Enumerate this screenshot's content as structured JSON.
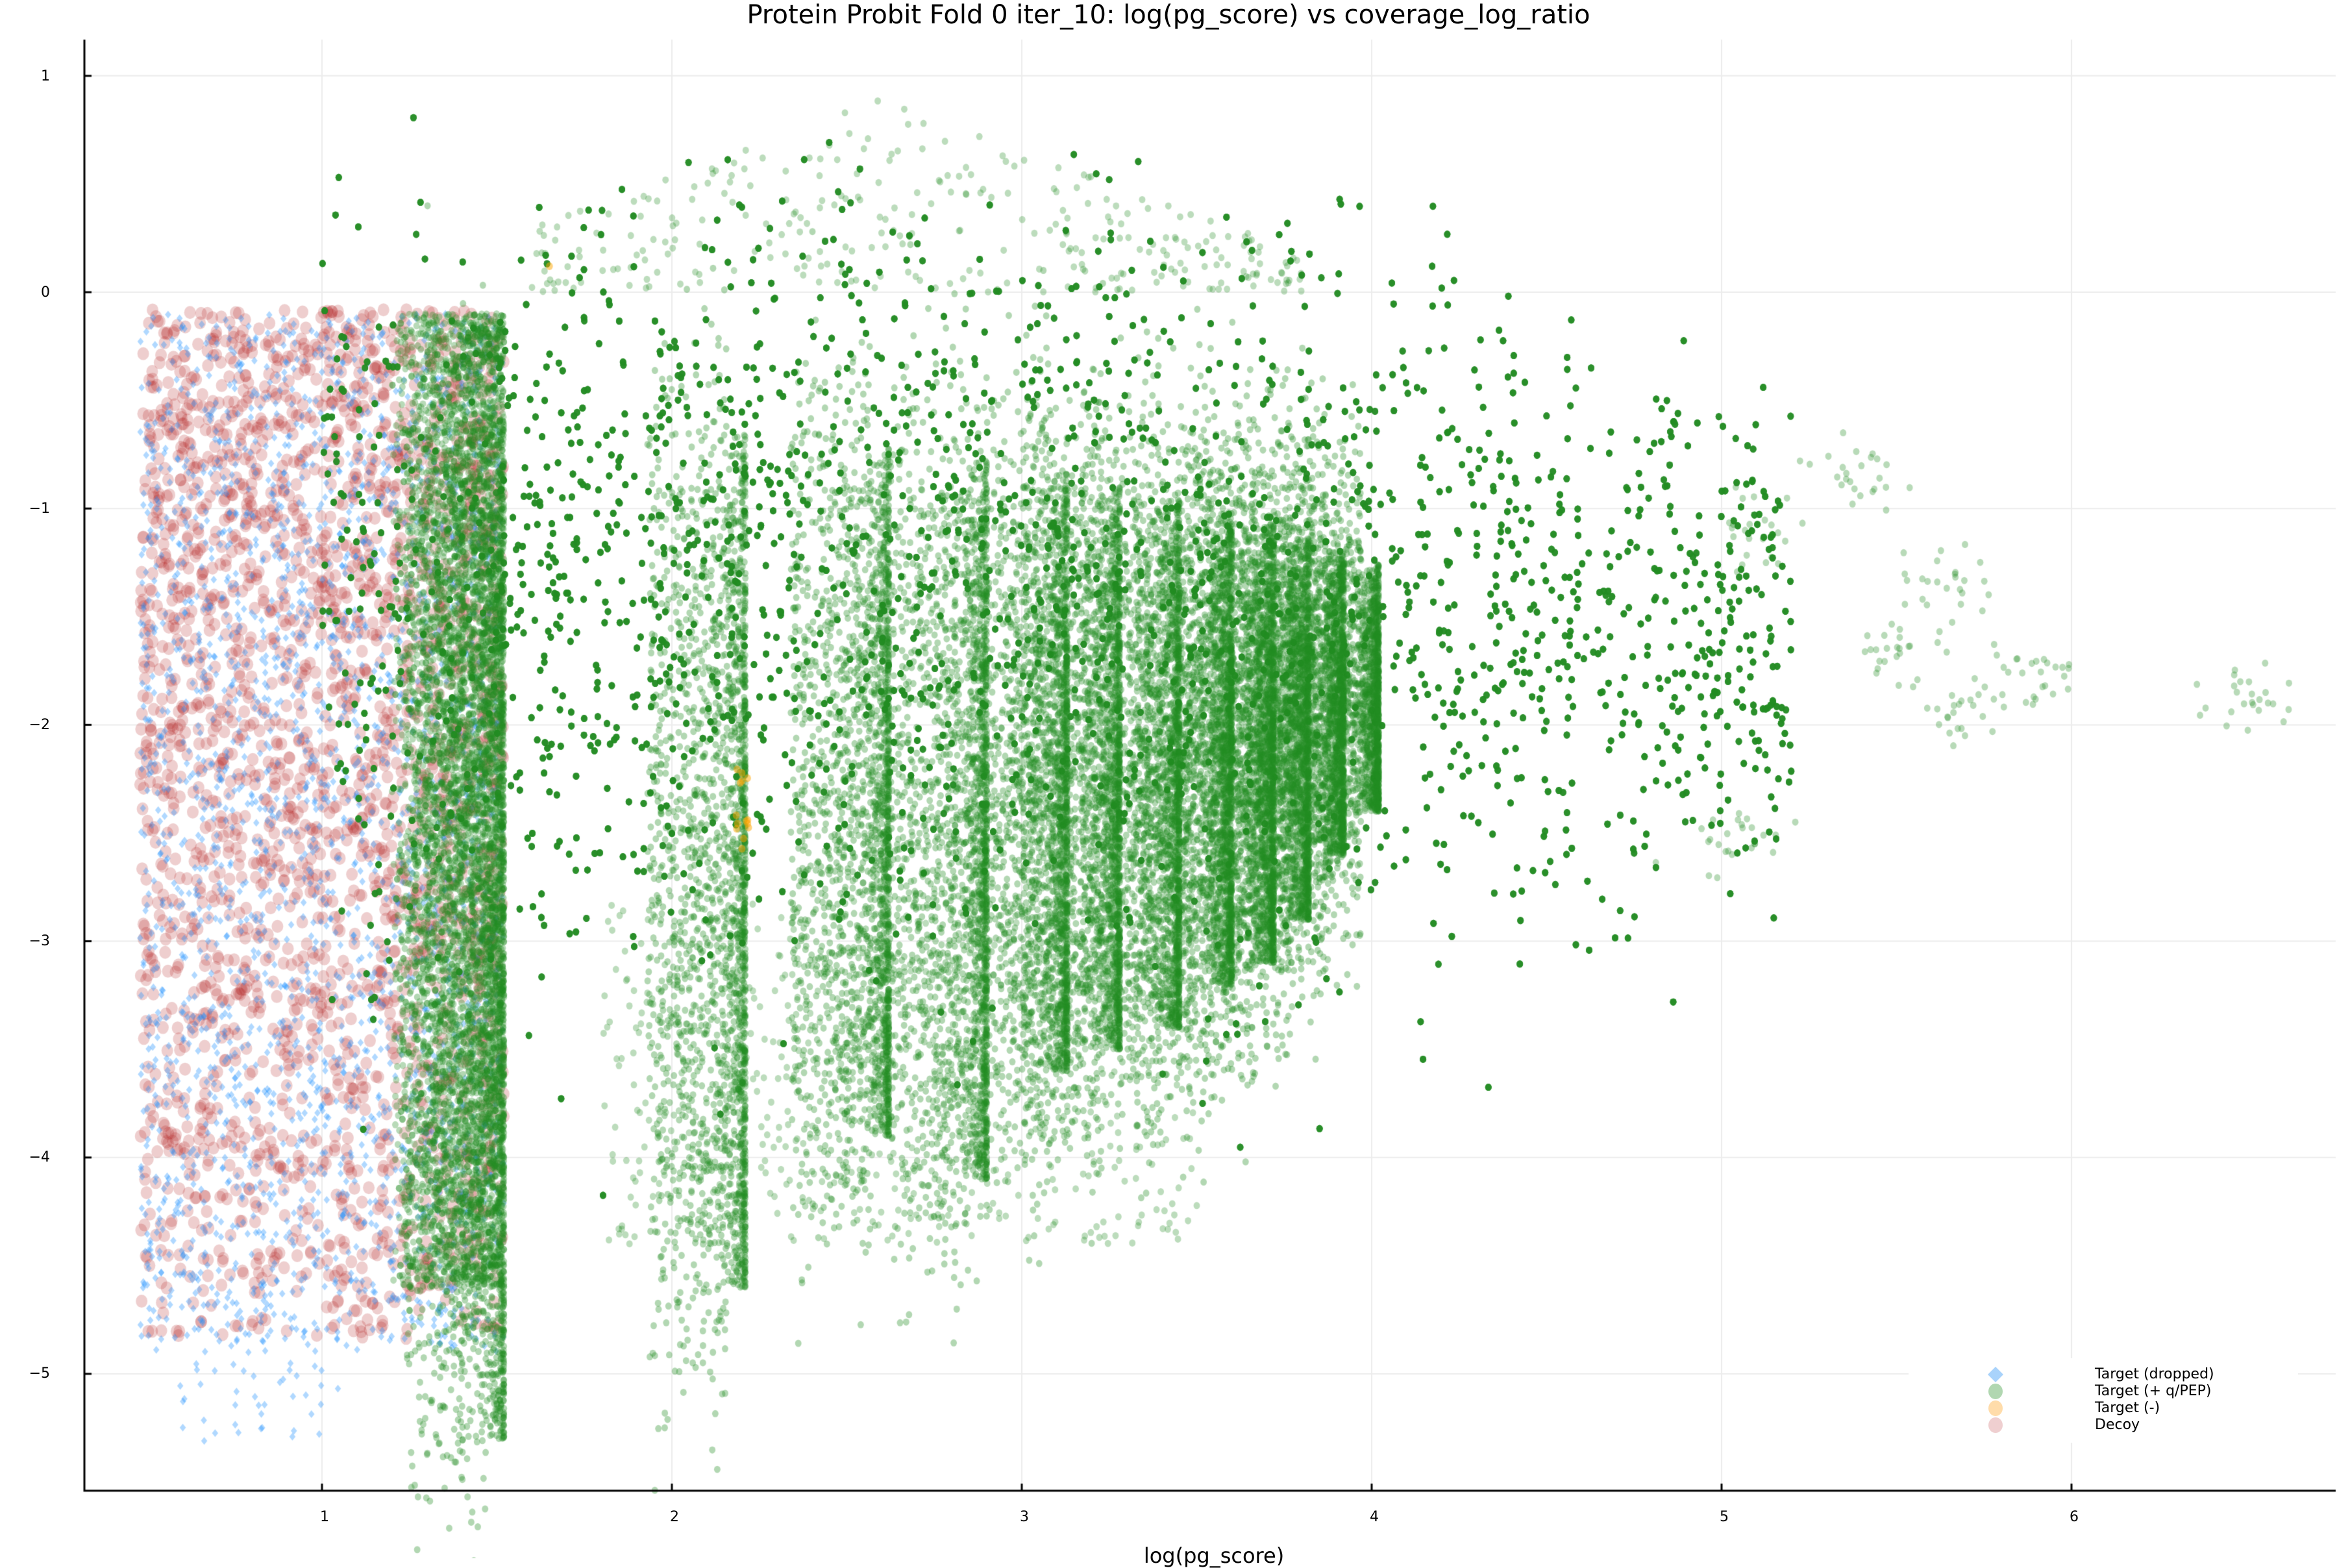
{
  "chart_data": {
    "type": "scatter",
    "title": "Protein Probit Fold 0 iter_10: log(pg_score) vs coverage_log_ratio",
    "xlabel": "log(pg_score)",
    "ylabel": "",
    "xlim": [
      0.3,
      6.75
    ],
    "ylim": [
      -5.55,
      1.17
    ],
    "grid": true,
    "legend_position": "bottom-right",
    "x_ticks": [
      1,
      2,
      3,
      4,
      5,
      6
    ],
    "y_ticks": [
      1,
      0,
      -1,
      -2,
      -3,
      -4,
      -5
    ],
    "x_tick_labels": [
      "1",
      "2",
      "3",
      "4",
      "5",
      "6"
    ],
    "y_tick_labels": [
      "1",
      "0",
      "−1",
      "−2",
      "−3",
      "−4",
      "−5"
    ],
    "series": [
      {
        "name": "Target (dropped)",
        "marker": "diamond",
        "color": "#1e90ff",
        "x_range": [
          0.48,
          1.52
        ],
        "y_range": [
          -5.35,
          -0.05
        ],
        "approx_count": 2500
      },
      {
        "name": "Target (+ q/PEP)",
        "marker": "circle",
        "color": "#228b22",
        "x_range": [
          0.9,
          6.55
        ],
        "y_range": [
          -5.3,
          0.98
        ],
        "approx_count": 60000,
        "dense_vertical_columns_x": [
          1.52,
          2.21,
          2.62,
          2.9,
          3.13,
          3.28,
          3.45,
          3.6,
          3.72,
          3.82,
          3.92,
          4.02
        ],
        "column_bottom_y": [
          -5.3,
          -4.6,
          -3.9,
          -4.1,
          -3.6,
          -3.5,
          -3.4,
          -3.2,
          -3.1,
          -2.9,
          -2.6,
          -2.4
        ],
        "outlier_clusters": [
          {
            "x": 5.4,
            "y": -0.85
          },
          {
            "x": 5.65,
            "y": -1.3
          },
          {
            "x": 5.5,
            "y": -1.65
          },
          {
            "x": 5.9,
            "y": -1.75
          },
          {
            "x": 5.7,
            "y": -1.95
          },
          {
            "x": 6.5,
            "y": -1.85
          },
          {
            "x": 5.1,
            "y": -1.1
          },
          {
            "x": 5.05,
            "y": -2.5
          }
        ]
      },
      {
        "name": "Target (-)",
        "marker": "circle",
        "color": "#ffa500",
        "x_range": [
          0.65,
          2.2
        ],
        "y_range": [
          -2.6,
          0.15
        ],
        "approx_count": 20
      },
      {
        "name": "Decoy",
        "marker": "circle",
        "color": "#b22222",
        "x_range": [
          0.48,
          1.52
        ],
        "y_range": [
          -4.85,
          -0.08
        ],
        "approx_count": 2800
      }
    ]
  },
  "legend": {
    "items": [
      {
        "label": "Target (dropped)",
        "color": "#a9d3fb",
        "shape": "diamond"
      },
      {
        "label": "Target (+ q/PEP)",
        "color": "#b1d7b1",
        "shape": "circle"
      },
      {
        "label": "Target (-)",
        "color": "#ffdcaa",
        "shape": "circle"
      },
      {
        "label": "Decoy",
        "color": "#efcfd0",
        "shape": "circle"
      }
    ]
  }
}
